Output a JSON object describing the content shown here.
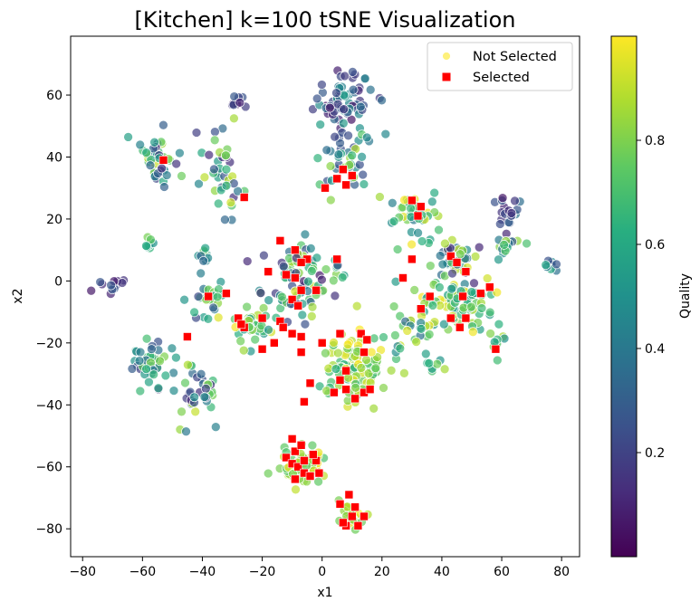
{
  "chart_data": {
    "type": "scatter",
    "title": "[Kitchen] k=100 tSNE Visualization",
    "xlabel": "x1",
    "ylabel": "x2",
    "xlim": [
      -84,
      86
    ],
    "ylim": [
      -89,
      79
    ],
    "xticks": [
      -80,
      -60,
      -40,
      -20,
      0,
      20,
      40,
      60,
      80
    ],
    "yticks": [
      -80,
      -60,
      -40,
      -20,
      0,
      20,
      40,
      60
    ],
    "legend": {
      "location": "top-right",
      "entries": [
        "Not Selected",
        "Selected"
      ]
    },
    "colorbar": {
      "label": "Quality",
      "range": [
        0,
        1
      ],
      "ticks": [
        0.2,
        0.4,
        0.6,
        0.8
      ],
      "colormap": "viridis"
    },
    "series": [
      {
        "name": "Not Selected",
        "marker": "circle",
        "description": "Points colored by Quality; coordinates approximate cluster centers with spread",
        "clusters": [
          {
            "cx": 7,
            "cy": 58,
            "sx": 7,
            "sy": 7,
            "n": 70,
            "q": [
              0.05,
              0.55
            ]
          },
          {
            "cx": 8,
            "cy": 38,
            "sx": 8,
            "sy": 7,
            "n": 40,
            "q": [
              0.2,
              0.9
            ]
          },
          {
            "cx": -55,
            "cy": 40,
            "sx": 4,
            "sy": 8,
            "n": 40,
            "q": [
              0.1,
              0.95
            ]
          },
          {
            "cx": -33,
            "cy": 35,
            "sx": 5,
            "sy": 9,
            "n": 40,
            "q": [
              0.1,
              0.95
            ]
          },
          {
            "cx": -28,
            "cy": 58,
            "sx": 2,
            "sy": 2,
            "n": 10,
            "q": [
              0.05,
              0.3
            ]
          },
          {
            "cx": -58,
            "cy": 12,
            "sx": 2,
            "sy": 2,
            "n": 8,
            "q": [
              0.5,
              0.95
            ]
          },
          {
            "cx": -70,
            "cy": -1,
            "sx": 3,
            "sy": 2,
            "n": 12,
            "q": [
              0.05,
              0.3
            ]
          },
          {
            "cx": -40,
            "cy": 8,
            "sx": 2,
            "sy": 3,
            "n": 10,
            "q": [
              0.3,
              0.8
            ]
          },
          {
            "cx": -40,
            "cy": -6,
            "sx": 4,
            "sy": 5,
            "n": 25,
            "q": [
              0.2,
              0.95
            ]
          },
          {
            "cx": -57,
            "cy": -28,
            "sx": 6,
            "sy": 7,
            "n": 45,
            "q": [
              0.1,
              0.95
            ]
          },
          {
            "cx": -43,
            "cy": -36,
            "sx": 6,
            "sy": 6,
            "n": 35,
            "q": [
              0.1,
              0.95
            ]
          },
          {
            "cx": -9,
            "cy": 0,
            "sx": 8,
            "sy": 9,
            "n": 80,
            "q": [
              0.05,
              0.95
            ]
          },
          {
            "cx": 5,
            "cy": 5,
            "sx": 3,
            "sy": 3,
            "n": 10,
            "q": [
              0.2,
              0.8
            ]
          },
          {
            "cx": 10,
            "cy": -28,
            "sx": 9,
            "sy": 9,
            "n": 110,
            "q": [
              0.6,
              1.0
            ]
          },
          {
            "cx": 30,
            "cy": 22,
            "sx": 6,
            "sy": 5,
            "n": 40,
            "q": [
              0.4,
              1.0
            ]
          },
          {
            "cx": 45,
            "cy": 6,
            "sx": 7,
            "sy": 5,
            "n": 45,
            "q": [
              0.1,
              0.95
            ]
          },
          {
            "cx": 45,
            "cy": -8,
            "sx": 9,
            "sy": 6,
            "n": 70,
            "q": [
              0.5,
              1.0
            ]
          },
          {
            "cx": 62,
            "cy": 22,
            "sx": 4,
            "sy": 3,
            "n": 20,
            "q": [
              0.05,
              0.4
            ]
          },
          {
            "cx": 62,
            "cy": 12,
            "sx": 4,
            "sy": 3,
            "n": 15,
            "q": [
              0.2,
              0.9
            ]
          },
          {
            "cx": 77,
            "cy": 5,
            "sx": 2,
            "sy": 2,
            "n": 8,
            "q": [
              0.2,
              0.6
            ]
          },
          {
            "cx": 58,
            "cy": -20,
            "sx": 2,
            "sy": 4,
            "n": 10,
            "q": [
              0.5,
              0.9
            ]
          },
          {
            "cx": 38,
            "cy": -26,
            "sx": 3,
            "sy": 2,
            "n": 8,
            "q": [
              0.5,
              0.9
            ]
          },
          {
            "cx": 30,
            "cy": -15,
            "sx": 5,
            "sy": 6,
            "n": 25,
            "q": [
              0.3,
              0.95
            ]
          },
          {
            "cx": -7,
            "cy": -60,
            "sx": 5,
            "sy": 4,
            "n": 60,
            "q": [
              0.7,
              1.0
            ]
          },
          {
            "cx": 10,
            "cy": -76,
            "sx": 3,
            "sy": 3,
            "n": 30,
            "q": [
              0.75,
              1.0
            ]
          },
          {
            "cx": -23,
            "cy": -15,
            "sx": 5,
            "sy": 5,
            "n": 35,
            "q": [
              0.5,
              1.0
            ]
          }
        ]
      },
      {
        "name": "Selected",
        "marker": "square",
        "color": "#ff0000",
        "points": [
          [
            -53,
            39
          ],
          [
            -26,
            27
          ],
          [
            7,
            36
          ],
          [
            8,
            31
          ],
          [
            5,
            33
          ],
          [
            1,
            30
          ],
          [
            10,
            34
          ],
          [
            30,
            26
          ],
          [
            32,
            21
          ],
          [
            33,
            24
          ],
          [
            30,
            7
          ],
          [
            27,
            1
          ],
          [
            43,
            8
          ],
          [
            45,
            6
          ],
          [
            48,
            3
          ],
          [
            -9,
            10
          ],
          [
            -14,
            13
          ],
          [
            -5,
            7
          ],
          [
            -7,
            6
          ],
          [
            -12,
            2
          ],
          [
            -9,
            1
          ],
          [
            -18,
            3
          ],
          [
            -7,
            -3
          ],
          [
            -10,
            -6
          ],
          [
            -8,
            -8
          ],
          [
            -2,
            -3
          ],
          [
            5,
            7
          ],
          [
            -38,
            -5
          ],
          [
            -32,
            -4
          ],
          [
            -28,
            -12
          ],
          [
            -20,
            -12
          ],
          [
            -26,
            -15
          ],
          [
            -14,
            -13
          ],
          [
            -13,
            -15
          ],
          [
            -16,
            -20
          ],
          [
            -20,
            -22
          ],
          [
            -10,
            -17
          ],
          [
            -7,
            -18
          ],
          [
            -7,
            -23
          ],
          [
            -4,
            -33
          ],
          [
            -6,
            -39
          ],
          [
            0,
            -20
          ],
          [
            6,
            -17
          ],
          [
            13,
            -17
          ],
          [
            15,
            -19
          ],
          [
            14,
            -23
          ],
          [
            8,
            -29
          ],
          [
            6,
            -32
          ],
          [
            4,
            -36
          ],
          [
            8,
            -35
          ],
          [
            11,
            -38
          ],
          [
            14,
            -36
          ],
          [
            16,
            -35
          ],
          [
            33,
            -9
          ],
          [
            36,
            -5
          ],
          [
            47,
            -5
          ],
          [
            48,
            -12
          ],
          [
            46,
            -15
          ],
          [
            43,
            -12
          ],
          [
            53,
            -4
          ],
          [
            56,
            -2
          ],
          [
            58,
            -22
          ],
          [
            -45,
            -18
          ],
          [
            -27,
            -14
          ],
          [
            -10,
            -51
          ],
          [
            -9,
            -55
          ],
          [
            -12,
            -57
          ],
          [
            -7,
            -53
          ],
          [
            -10,
            -59
          ],
          [
            -8,
            -60
          ],
          [
            -6,
            -62
          ],
          [
            -9,
            -64
          ],
          [
            -4,
            -63
          ],
          [
            -2,
            -58
          ],
          [
            -1,
            -62
          ],
          [
            -3,
            -56
          ],
          [
            -6,
            -58
          ],
          [
            6,
            -72
          ],
          [
            9,
            -69
          ],
          [
            11,
            -73
          ],
          [
            10,
            -76
          ],
          [
            14,
            -76
          ],
          [
            8,
            -79
          ],
          [
            12,
            -79
          ],
          [
            7,
            -78
          ]
        ]
      }
    ]
  }
}
